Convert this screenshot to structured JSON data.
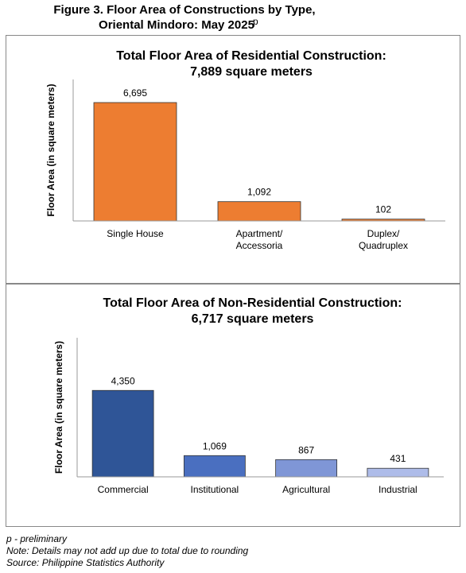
{
  "figure_title": [
    "Figure 3. Floor Area of Constructions by Type,",
    "Oriental Mindoro: May 2025"
  ],
  "figure_title_superscript": "p",
  "chart_data": [
    {
      "type": "bar",
      "title": [
        "Total Floor Area of Residential Construction:",
        "7,889 square meters"
      ],
      "ylabel": "Floor Area (in square meters)",
      "categories": [
        "Single House",
        "Apartment/\nAccessoria",
        "Duplex/\nQuadruplex"
      ],
      "values": [
        6695,
        1092,
        102
      ],
      "value_labels": [
        "6,695",
        "1,092",
        "102"
      ],
      "colors": [
        "#ed7d31",
        "#ed7d31",
        "#ed7d31"
      ],
      "ylim": [
        0,
        8000
      ]
    },
    {
      "type": "bar",
      "title": [
        "Total Floor Area of Non-Residential Construction:",
        "6,717 square meters"
      ],
      "ylabel": "Floor Area (in square meters)",
      "categories": [
        "Commercial",
        "Institutional",
        "Agricultural",
        "Industrial"
      ],
      "values": [
        4350,
        1069,
        867,
        431
      ],
      "value_labels": [
        "4,350",
        "1,069",
        "867",
        "431"
      ],
      "colors": [
        "#2f5597",
        "#4a6fc0",
        "#7f96d6",
        "#aebce9"
      ],
      "ylim": [
        0,
        7000
      ]
    }
  ],
  "notes": [
    "p - preliminary",
    "Note: Details may not add up due to total due to rounding",
    "Source: Philippine Statistics Authority"
  ]
}
